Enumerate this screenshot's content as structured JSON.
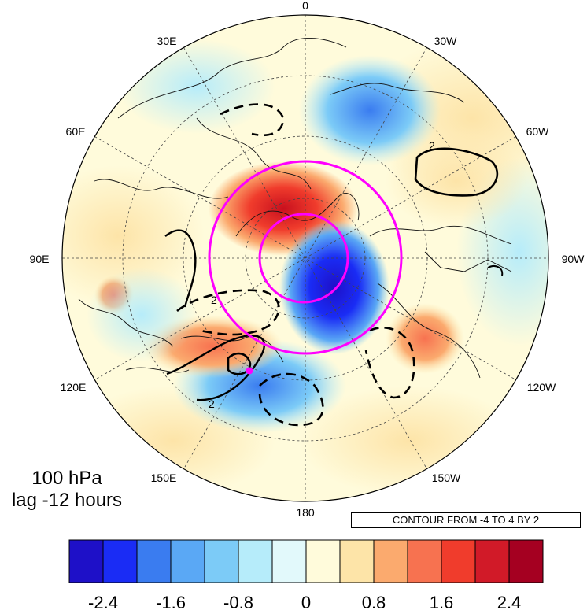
{
  "map": {
    "longitude_labels": [
      "0",
      "30W",
      "60W",
      "90W",
      "120W",
      "150W",
      "180",
      "150E",
      "120E",
      "90E",
      "60E",
      "30E"
    ],
    "contour_label": "2",
    "annotation_line1": "100 hPa",
    "annotation_line2": "lag -12 hours",
    "contour_info": "CONTOUR FROM -4 TO 4 BY 2",
    "overlay_color": "#ff00ff",
    "colorbar": {
      "colors": [
        "#1e10c8",
        "#1a2cf5",
        "#3a7cf0",
        "#5aa8f5",
        "#7ccbf7",
        "#b6ecfa",
        "#e2f9fb",
        "#fffbdb",
        "#fde4a8",
        "#fbaa6e",
        "#f77250",
        "#f03c2c",
        "#d11a28",
        "#a50021"
      ],
      "tick_labels": [
        "-2.4",
        "-1.6",
        "-0.8",
        "0",
        "0.8",
        "1.6",
        "2.4"
      ]
    }
  }
}
